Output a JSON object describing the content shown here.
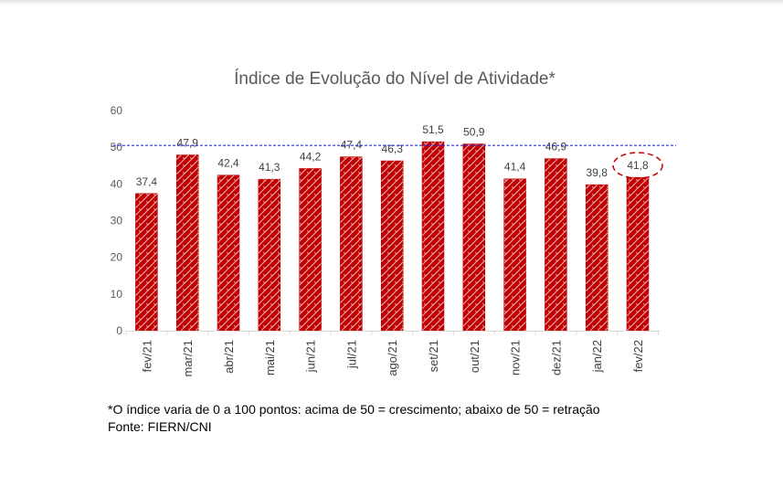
{
  "chart_data": {
    "type": "bar",
    "title": "Índice de Evolução do Nível de Atividade*",
    "xlabel": "",
    "ylabel": "",
    "categories": [
      "fev/21",
      "mar/21",
      "abr/21",
      "mai/21",
      "jun/21",
      "jul/21",
      "ago/21",
      "set/21",
      "out/21",
      "nov/21",
      "dez/21",
      "jan/22",
      "fev/22"
    ],
    "values": [
      37.4,
      47.9,
      42.4,
      41.3,
      44.2,
      47.4,
      46.3,
      51.5,
      50.9,
      41.4,
      46.9,
      39.8,
      41.8
    ],
    "data_labels": [
      "37,4",
      "47,9",
      "42,4",
      "41,3",
      "44,2",
      "47,4",
      "46,3",
      "51,5",
      "50,9",
      "41,4",
      "46,9",
      "39,8",
      "41,8"
    ],
    "ylim": [
      0,
      60
    ],
    "yticks": [
      0,
      10,
      20,
      30,
      40,
      50,
      60
    ],
    "grid": false,
    "reference_line": {
      "value": 50,
      "style": "dotted",
      "color": "#2e2ee0"
    },
    "highlighted_category": "fev/22",
    "bar_color": "#c00000",
    "bar_pattern": "hatched"
  },
  "footnote": "*O índice varia de 0 a 100 pontos: acima de 50 = crescimento; abaixo de 50 = retração",
  "source": "Fonte: FIERN/CNI"
}
